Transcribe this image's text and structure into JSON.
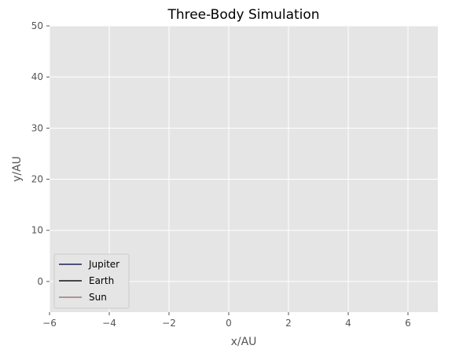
{
  "chart_data": {
    "type": "line",
    "title": "Three-Body Simulation",
    "xlabel": "x/AU",
    "ylabel": "y/AU",
    "xlim": [
      -6,
      7
    ],
    "ylim": [
      -6,
      50
    ],
    "xticks": [
      -6,
      -4,
      -2,
      0,
      2,
      4,
      6
    ],
    "yticks": [
      0,
      10,
      20,
      30,
      40,
      50
    ],
    "grid": true,
    "legend_position": "lower-left",
    "series": [
      {
        "name": "Jupiter",
        "color": "#1f1f5a",
        "x": [],
        "y": []
      },
      {
        "name": "Earth",
        "color": "#111111",
        "x": [],
        "y": []
      },
      {
        "name": "Sun",
        "color": "#a07878",
        "x": [],
        "y": []
      }
    ]
  }
}
